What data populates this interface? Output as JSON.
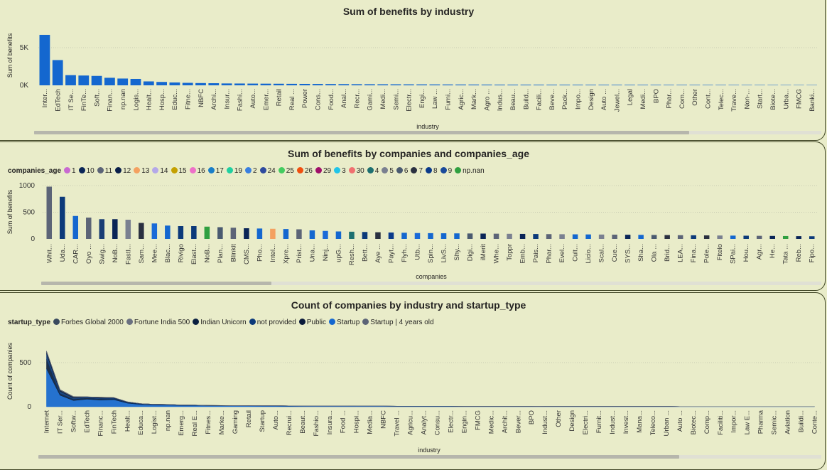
{
  "colors": {
    "primary": "#1467cf",
    "dark": "#0a2557",
    "navy": "#0c3a7a",
    "grey": "#5c6477",
    "axis": "#555555"
  },
  "chart_data": [
    {
      "type": "bar",
      "title": "Sum of benefits by industry",
      "xlabel": "industry",
      "ylabel": "Sum of benefits",
      "ylim": [
        0,
        7000
      ],
      "yticks": [
        "0K",
        "5K"
      ],
      "color": "#1467cf",
      "categories": [
        "Inter...",
        "EdTech",
        "IT Se...",
        "FinTe...",
        "Soft...",
        "Finan...",
        "np.nan",
        "Logis...",
        "Healt...",
        "Hosp...",
        "Educ...",
        "Fitne...",
        "NBFC",
        "Archi...",
        "Insur...",
        "Fashi...",
        "Auto...",
        "Emer...",
        "Retail",
        "Real ...",
        "Power",
        "Cons...",
        "Food...",
        "Anal...",
        "Recr...",
        "Gami...",
        "Medi...",
        "Semi...",
        "Electr...",
        "Engi...",
        "Law ...",
        "Furni...",
        "Agric...",
        "Mark...",
        "Agro ...",
        "Indus...",
        "Beau...",
        "Build...",
        "Facili...",
        "Beve...",
        "Pack...",
        "Impo...",
        "Design",
        "Auto ...",
        "Jewel...",
        "Legal",
        "Medi...",
        "BPO",
        "Phar...",
        "Com...",
        "Other",
        "Cont...",
        "Telec...",
        "Trave...",
        "Non-...",
        "Start...",
        "Biote...",
        "Urba...",
        "FMCG",
        "Banki..."
      ],
      "values": [
        6700,
        3350,
        1350,
        1300,
        1250,
        1000,
        900,
        850,
        520,
        450,
        380,
        330,
        300,
        280,
        250,
        240,
        230,
        220,
        210,
        200,
        190,
        180,
        170,
        160,
        150,
        145,
        140,
        135,
        130,
        125,
        120,
        115,
        110,
        105,
        100,
        95,
        92,
        90,
        88,
        86,
        84,
        82,
        80,
        78,
        76,
        74,
        72,
        70,
        68,
        66,
        64,
        62,
        60,
        58,
        56,
        54,
        52,
        50,
        48,
        46
      ]
    },
    {
      "type": "bar",
      "title": "Sum of benefits by companies and companies_age",
      "xlabel": "companies",
      "ylabel": "Sum of benefits",
      "ylim": [
        0,
        1000
      ],
      "yticks": [
        "0",
        "500",
        "1000"
      ],
      "legend": {
        "title": "companies_age",
        "items": [
          {
            "name": "1",
            "color": "#c869d0"
          },
          {
            "name": "10",
            "color": "#0a2557"
          },
          {
            "name": "11",
            "color": "#5c6477"
          },
          {
            "name": "12",
            "color": "#0a1f4a"
          },
          {
            "name": "13",
            "color": "#f4a160"
          },
          {
            "name": "14",
            "color": "#b4a8e8"
          },
          {
            "name": "15",
            "color": "#c4a000"
          },
          {
            "name": "16",
            "color": "#ee70c8"
          },
          {
            "name": "17",
            "color": "#1a7fc8"
          },
          {
            "name": "19",
            "color": "#20d0a0"
          },
          {
            "name": "2",
            "color": "#3a80e0"
          },
          {
            "name": "24",
            "color": "#2e4a9e"
          },
          {
            "name": "25",
            "color": "#44cc60"
          },
          {
            "name": "26",
            "color": "#f05010"
          },
          {
            "name": "29",
            "color": "#a0106a"
          },
          {
            "name": "3",
            "color": "#20c4e8"
          },
          {
            "name": "30",
            "color": "#f07070"
          },
          {
            "name": "4",
            "color": "#1e7070"
          },
          {
            "name": "5",
            "color": "#7a8090"
          },
          {
            "name": "6",
            "color": "#4a5a70"
          },
          {
            "name": "7",
            "color": "#2a3040"
          },
          {
            "name": "8",
            "color": "#0a3a8a"
          },
          {
            "name": "9",
            "color": "#1a4a9a"
          },
          {
            "name": "np.nan",
            "color": "#30a040"
          }
        ]
      },
      "categories": [
        "Whit...",
        "Uda...",
        "CAR...",
        "Oyo ...",
        "Swig...",
        "NoB...",
        "FastI...",
        "Sam...",
        "Mee...",
        "Blac...",
        "Rivigo",
        "Elast...",
        "NoB...",
        "Plan...",
        "Blinkit",
        "CMS...",
        "Pho...",
        "Intel...",
        "Xpre...",
        "Prist...",
        "Una...",
        "Ninj...",
        "upG...",
        "Resh...",
        "Bett...",
        "Aye ...",
        "Payt...",
        "Flyh...",
        "Utb...",
        "Spin...",
        "LivS...",
        "Shy...",
        "Digi...",
        "iMerit",
        "Whe...",
        "Toppr",
        "Emb...",
        "Pais...",
        "Phar...",
        "Evel...",
        "Cult...",
        "Licio...",
        "Scal...",
        "Cue...",
        "SYS...",
        "Sha...",
        "Ola ...",
        "Brid...",
        "LEA...",
        "Fina...",
        "Pole...",
        "Fitelo",
        "SPai...",
        "Hou...",
        "Agr...",
        "He...",
        "Tata ...",
        "Reb...",
        "Fipo..."
      ],
      "values": [
        980,
        790,
        430,
        400,
        370,
        370,
        360,
        300,
        290,
        250,
        240,
        240,
        230,
        220,
        210,
        200,
        195,
        190,
        185,
        180,
        160,
        150,
        140,
        135,
        130,
        125,
        120,
        115,
        110,
        108,
        106,
        104,
        102,
        100,
        98,
        96,
        94,
        92,
        90,
        88,
        86,
        84,
        82,
        80,
        78,
        76,
        74,
        72,
        70,
        68,
        66,
        64,
        62,
        60,
        58,
        56,
        54,
        52,
        50
      ],
      "bar_colors": [
        "#5c6477",
        "#0c3a7a",
        "#1467cf",
        "#5c6477",
        "#1a3e74",
        "#0a2557",
        "#7a8090",
        "#2a3040",
        "#1a6ad8",
        "#1467cf",
        "#0c3a7a",
        "#0c3a7a",
        "#30a040",
        "#4a5a70",
        "#5c6477",
        "#0a2557",
        "#1467cf",
        "#f4a160",
        "#1467cf",
        "#5c6477",
        "#1467cf",
        "#1a6ad8",
        "#1467cf",
        "#1e7070",
        "#0c3a7a",
        "#2a3040",
        "#0a3a8a",
        "#1467cf",
        "#1a6ad8",
        "#1467cf",
        "#1467cf",
        "#1467cf",
        "#4a5a70",
        "#0a2557",
        "#5c6477",
        "#7a8090",
        "#0a2557",
        "#0c3a7a",
        "#5c6477",
        "#7a8090",
        "#1467cf",
        "#1467cf",
        "#7a8090",
        "#5c6477",
        "#0a2557",
        "#1467cf",
        "#4a5a70",
        "#2a3040",
        "#5c6477",
        "#0c3a7a",
        "#2a3040",
        "#7a8090",
        "#1467cf",
        "#0c3a7a",
        "#5c6477",
        "#0a2557",
        "#30a040",
        "#0a2557",
        "#0c3a7a"
      ]
    },
    {
      "type": "area",
      "stacked": true,
      "title": "Count of companies by industry and startup_type",
      "xlabel": "industry",
      "ylabel": "Count of companies",
      "ylim": [
        0,
        650
      ],
      "yticks": [
        "0",
        "500"
      ],
      "legend": {
        "title": "startup_type",
        "items": [
          {
            "name": "Forbes Global 2000",
            "color": "#3a4a5e"
          },
          {
            "name": "Fortune India 500",
            "color": "#6a7080"
          },
          {
            "name": "Indian Unicorn",
            "color": "#0a2040"
          },
          {
            "name": "not provided",
            "color": "#0c3a7a"
          },
          {
            "name": "Public",
            "color": "#0a1a3a"
          },
          {
            "name": "Startup",
            "color": "#1467cf"
          },
          {
            "name": "Startup | 4 years old",
            "color": "#5c6477"
          }
        ]
      },
      "categories": [
        "Internet",
        "IT Ser...",
        "Softw...",
        "EdTech",
        "Financ...",
        "FinTech",
        "Healt...",
        "Educa...",
        "Logist...",
        "np.nan",
        "Emerg...",
        "Real E...",
        "Fitnes...",
        "Marke...",
        "Gaming",
        "Retail",
        "Startup",
        "Auto...",
        "Recrui...",
        "Beaut...",
        "Fashio...",
        "Insura...",
        "Food ...",
        "Hospi...",
        "Media...",
        "NBFC",
        "Travel ...",
        "Agricu...",
        "Analyt...",
        "Consu...",
        "Electr...",
        "Engin...",
        "FMCG",
        "Medic...",
        "Archit...",
        "Bever...",
        "BPO",
        "Indust...",
        "Other",
        "Design",
        "Electri...",
        "Furnit...",
        "Indust...",
        "Invest...",
        "Mana...",
        "Teleco...",
        "Urban ...",
        "Auto ...",
        "Biotec...",
        "Comp...",
        "Faciliti...",
        "Impor...",
        "Law E...",
        "Pharma",
        "Semic...",
        "Aviation",
        "Buildi...",
        "Conte..."
      ],
      "series": [
        {
          "name": "Startup",
          "color": "#1467cf",
          "values": [
            430,
            130,
            70,
            85,
            75,
            80,
            40,
            25,
            20,
            18,
            15,
            14,
            12,
            11,
            10,
            10,
            9,
            9,
            8,
            8,
            7,
            7,
            7,
            6,
            6,
            6,
            5,
            5,
            5,
            5,
            5,
            4,
            4,
            4,
            4,
            4,
            4,
            3,
            3,
            3,
            3,
            3,
            3,
            3,
            3,
            3,
            3,
            2,
            2,
            2,
            2,
            2,
            2,
            2,
            2,
            2,
            2,
            2
          ]
        },
        {
          "name": "Indian Unicorn",
          "color": "#0a2040",
          "values": [
            110,
            20,
            15,
            15,
            12,
            10,
            6,
            4,
            3,
            2,
            2,
            2,
            1,
            1,
            1,
            1,
            1,
            1,
            1,
            0,
            0,
            0,
            0,
            0,
            0,
            0,
            0,
            0,
            0,
            0,
            0,
            0,
            0,
            0,
            0,
            0,
            0,
            0,
            0,
            0,
            0,
            0,
            0,
            0,
            0,
            0,
            0,
            0,
            0,
            0,
            0,
            0,
            0,
            0,
            0,
            0,
            0,
            0
          ]
        },
        {
          "name": "not provided",
          "color": "#0c3a7a",
          "values": [
            60,
            25,
            15,
            10,
            10,
            8,
            5,
            4,
            3,
            5,
            2,
            2,
            1,
            1,
            1,
            1,
            1,
            1,
            1,
            1,
            1,
            1,
            1,
            1,
            1,
            1,
            1,
            1,
            1,
            1,
            1,
            1,
            1,
            1,
            1,
            1,
            1,
            0,
            0,
            0,
            0,
            0,
            0,
            0,
            0,
            0,
            0,
            0,
            0,
            0,
            0,
            0,
            0,
            0,
            0,
            0,
            0,
            0
          ]
        },
        {
          "name": "Public",
          "color": "#0a1a3a",
          "values": [
            20,
            10,
            8,
            2,
            6,
            4,
            3,
            2,
            2,
            1,
            1,
            1,
            1,
            1,
            0,
            1,
            0,
            1,
            0,
            0,
            0,
            0,
            0,
            0,
            0,
            0,
            0,
            0,
            0,
            0,
            0,
            0,
            0,
            0,
            0,
            0,
            0,
            0,
            0,
            0,
            0,
            0,
            0,
            0,
            0,
            0,
            0,
            0,
            0,
            0,
            0,
            0,
            0,
            0,
            0,
            0,
            0,
            0
          ]
        },
        {
          "name": "Forbes Global 2000",
          "color": "#3a4a5e",
          "values": [
            5,
            5,
            4,
            0,
            3,
            1,
            1,
            0,
            0,
            0,
            0,
            0,
            0,
            0,
            0,
            0,
            0,
            0,
            0,
            0,
            0,
            0,
            0,
            0,
            0,
            0,
            0,
            0,
            0,
            0,
            0,
            0,
            0,
            0,
            0,
            0,
            0,
            0,
            0,
            0,
            0,
            0,
            0,
            0,
            0,
            0,
            0,
            0,
            0,
            0,
            0,
            0,
            0,
            0,
            0,
            0,
            0,
            0
          ]
        },
        {
          "name": "Fortune India 500",
          "color": "#6a7080",
          "values": [
            5,
            4,
            3,
            0,
            2,
            1,
            1,
            0,
            0,
            0,
            0,
            0,
            0,
            0,
            0,
            0,
            0,
            0,
            0,
            0,
            0,
            0,
            0,
            0,
            0,
            0,
            0,
            0,
            0,
            0,
            0,
            0,
            0,
            0,
            0,
            0,
            0,
            0,
            0,
            0,
            0,
            0,
            0,
            0,
            0,
            0,
            0,
            0,
            0,
            0,
            0,
            0,
            0,
            0,
            0,
            0,
            0,
            0
          ]
        },
        {
          "name": "Startup | 4 years old",
          "color": "#5c6477",
          "values": [
            2,
            1,
            1,
            0,
            1,
            0,
            0,
            0,
            0,
            0,
            0,
            0,
            0,
            0,
            0,
            0,
            0,
            0,
            0,
            0,
            0,
            0,
            0,
            0,
            0,
            0,
            0,
            0,
            0,
            0,
            0,
            0,
            0,
            0,
            0,
            0,
            0,
            0,
            0,
            0,
            0,
            0,
            0,
            0,
            0,
            0,
            0,
            0,
            0,
            0,
            0,
            0,
            0,
            0,
            0,
            0,
            0,
            0
          ]
        }
      ]
    }
  ]
}
